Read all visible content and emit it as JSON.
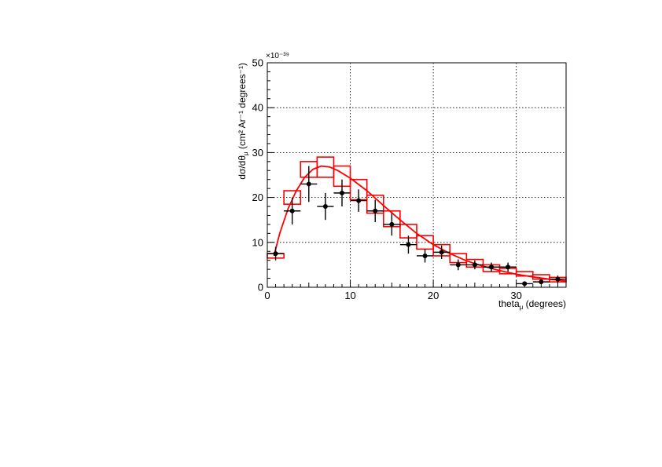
{
  "chart_data": {
    "type": "scatter",
    "x_label": {
      "main": "theta",
      "sub": "μ",
      "rest": " (degrees)"
    },
    "y_label": {
      "main": "dσ/dθ",
      "sub": "μ",
      "rest": " (cm² Ar⁻¹ degrees⁻¹)"
    },
    "y_exponent": "×10⁻³⁹",
    "xlim": [
      0,
      36
    ],
    "ylim": [
      0,
      50
    ],
    "x_ticks": [
      0,
      10,
      20,
      30
    ],
    "y_ticks": [
      0,
      10,
      20,
      30,
      40,
      50
    ],
    "grid": true,
    "colors": {
      "data": "#000000",
      "model": "#ff0000"
    },
    "data_points": [
      {
        "x": 1,
        "y": 7.5,
        "ex": 1,
        "ey": 1.5
      },
      {
        "x": 3,
        "y": 17.0,
        "ex": 1,
        "ey": 3.0
      },
      {
        "x": 5,
        "y": 23.0,
        "ex": 1,
        "ey": 4.0
      },
      {
        "x": 7,
        "y": 18.0,
        "ex": 1,
        "ey": 3.0
      },
      {
        "x": 9,
        "y": 21.0,
        "ex": 1,
        "ey": 3.0
      },
      {
        "x": 11,
        "y": 19.3,
        "ex": 1,
        "ey": 2.5
      },
      {
        "x": 13,
        "y": 17.0,
        "ex": 1,
        "ey": 2.5
      },
      {
        "x": 15,
        "y": 14.0,
        "ex": 1,
        "ey": 2.5
      },
      {
        "x": 17,
        "y": 9.5,
        "ex": 1,
        "ey": 2.0
      },
      {
        "x": 19,
        "y": 7.0,
        "ex": 1,
        "ey": 1.5
      },
      {
        "x": 21,
        "y": 7.8,
        "ex": 1,
        "ey": 1.5
      },
      {
        "x": 23,
        "y": 5.0,
        "ex": 1,
        "ey": 1.2
      },
      {
        "x": 25,
        "y": 5.0,
        "ex": 1,
        "ey": 1.0
      },
      {
        "x": 27,
        "y": 4.5,
        "ex": 1,
        "ey": 1.0
      },
      {
        "x": 29,
        "y": 4.5,
        "ex": 1,
        "ey": 1.0
      },
      {
        "x": 31,
        "y": 0.8,
        "ex": 1,
        "ey": 0.5
      },
      {
        "x": 33,
        "y": 1.2,
        "ex": 1,
        "ey": 0.5
      },
      {
        "x": 35,
        "y": 1.8,
        "ex": 1,
        "ey": 0.8
      }
    ],
    "model_boxes": [
      {
        "x0": 0,
        "x1": 2,
        "lo": 6.5,
        "hi": 7.5
      },
      {
        "x0": 2,
        "x1": 4,
        "lo": 18.5,
        "hi": 21.5
      },
      {
        "x0": 4,
        "x1": 6,
        "lo": 24.5,
        "hi": 28.0
      },
      {
        "x0": 6,
        "x1": 8,
        "lo": 24.5,
        "hi": 29.0
      },
      {
        "x0": 8,
        "x1": 10,
        "lo": 22.5,
        "hi": 27.0
      },
      {
        "x0": 10,
        "x1": 12,
        "lo": 19.5,
        "hi": 24.0
      },
      {
        "x0": 12,
        "x1": 14,
        "lo": 16.5,
        "hi": 20.5
      },
      {
        "x0": 14,
        "x1": 16,
        "lo": 13.5,
        "hi": 17.0
      },
      {
        "x0": 16,
        "x1": 18,
        "lo": 11.0,
        "hi": 14.0
      },
      {
        "x0": 18,
        "x1": 20,
        "lo": 8.5,
        "hi": 11.5
      },
      {
        "x0": 20,
        "x1": 22,
        "lo": 7.0,
        "hi": 9.5
      },
      {
        "x0": 22,
        "x1": 24,
        "lo": 5.5,
        "hi": 7.5
      },
      {
        "x0": 24,
        "x1": 26,
        "lo": 4.5,
        "hi": 6.2
      },
      {
        "x0": 26,
        "x1": 28,
        "lo": 3.5,
        "hi": 5.0
      },
      {
        "x0": 28,
        "x1": 30,
        "lo": 3.0,
        "hi": 4.2
      },
      {
        "x0": 30,
        "x1": 32,
        "lo": 2.5,
        "hi": 3.5
      },
      {
        "x0": 32,
        "x1": 34,
        "lo": 1.8,
        "hi": 2.8
      },
      {
        "x0": 34,
        "x1": 36,
        "lo": 1.2,
        "hi": 2.2
      }
    ],
    "model_curve": [
      {
        "x": 0.8,
        "y": 7.0
      },
      {
        "x": 1.5,
        "y": 12.0
      },
      {
        "x": 2.5,
        "y": 17.5
      },
      {
        "x": 3.5,
        "y": 21.5
      },
      {
        "x": 4.5,
        "y": 24.5
      },
      {
        "x": 5.5,
        "y": 26.3
      },
      {
        "x": 6.5,
        "y": 27.0
      },
      {
        "x": 7.5,
        "y": 26.8
      },
      {
        "x": 8.5,
        "y": 26.0
      },
      {
        "x": 10,
        "y": 24.3
      },
      {
        "x": 12,
        "y": 21.5
      },
      {
        "x": 14,
        "y": 18.2
      },
      {
        "x": 16,
        "y": 15.0
      },
      {
        "x": 18,
        "y": 12.0
      },
      {
        "x": 20,
        "y": 9.5
      },
      {
        "x": 22,
        "y": 7.5
      },
      {
        "x": 24,
        "y": 5.9
      },
      {
        "x": 26,
        "y": 4.7
      },
      {
        "x": 28,
        "y": 3.7
      },
      {
        "x": 30,
        "y": 2.9
      },
      {
        "x": 32,
        "y": 2.3
      },
      {
        "x": 34,
        "y": 1.8
      },
      {
        "x": 36,
        "y": 1.4
      }
    ]
  }
}
